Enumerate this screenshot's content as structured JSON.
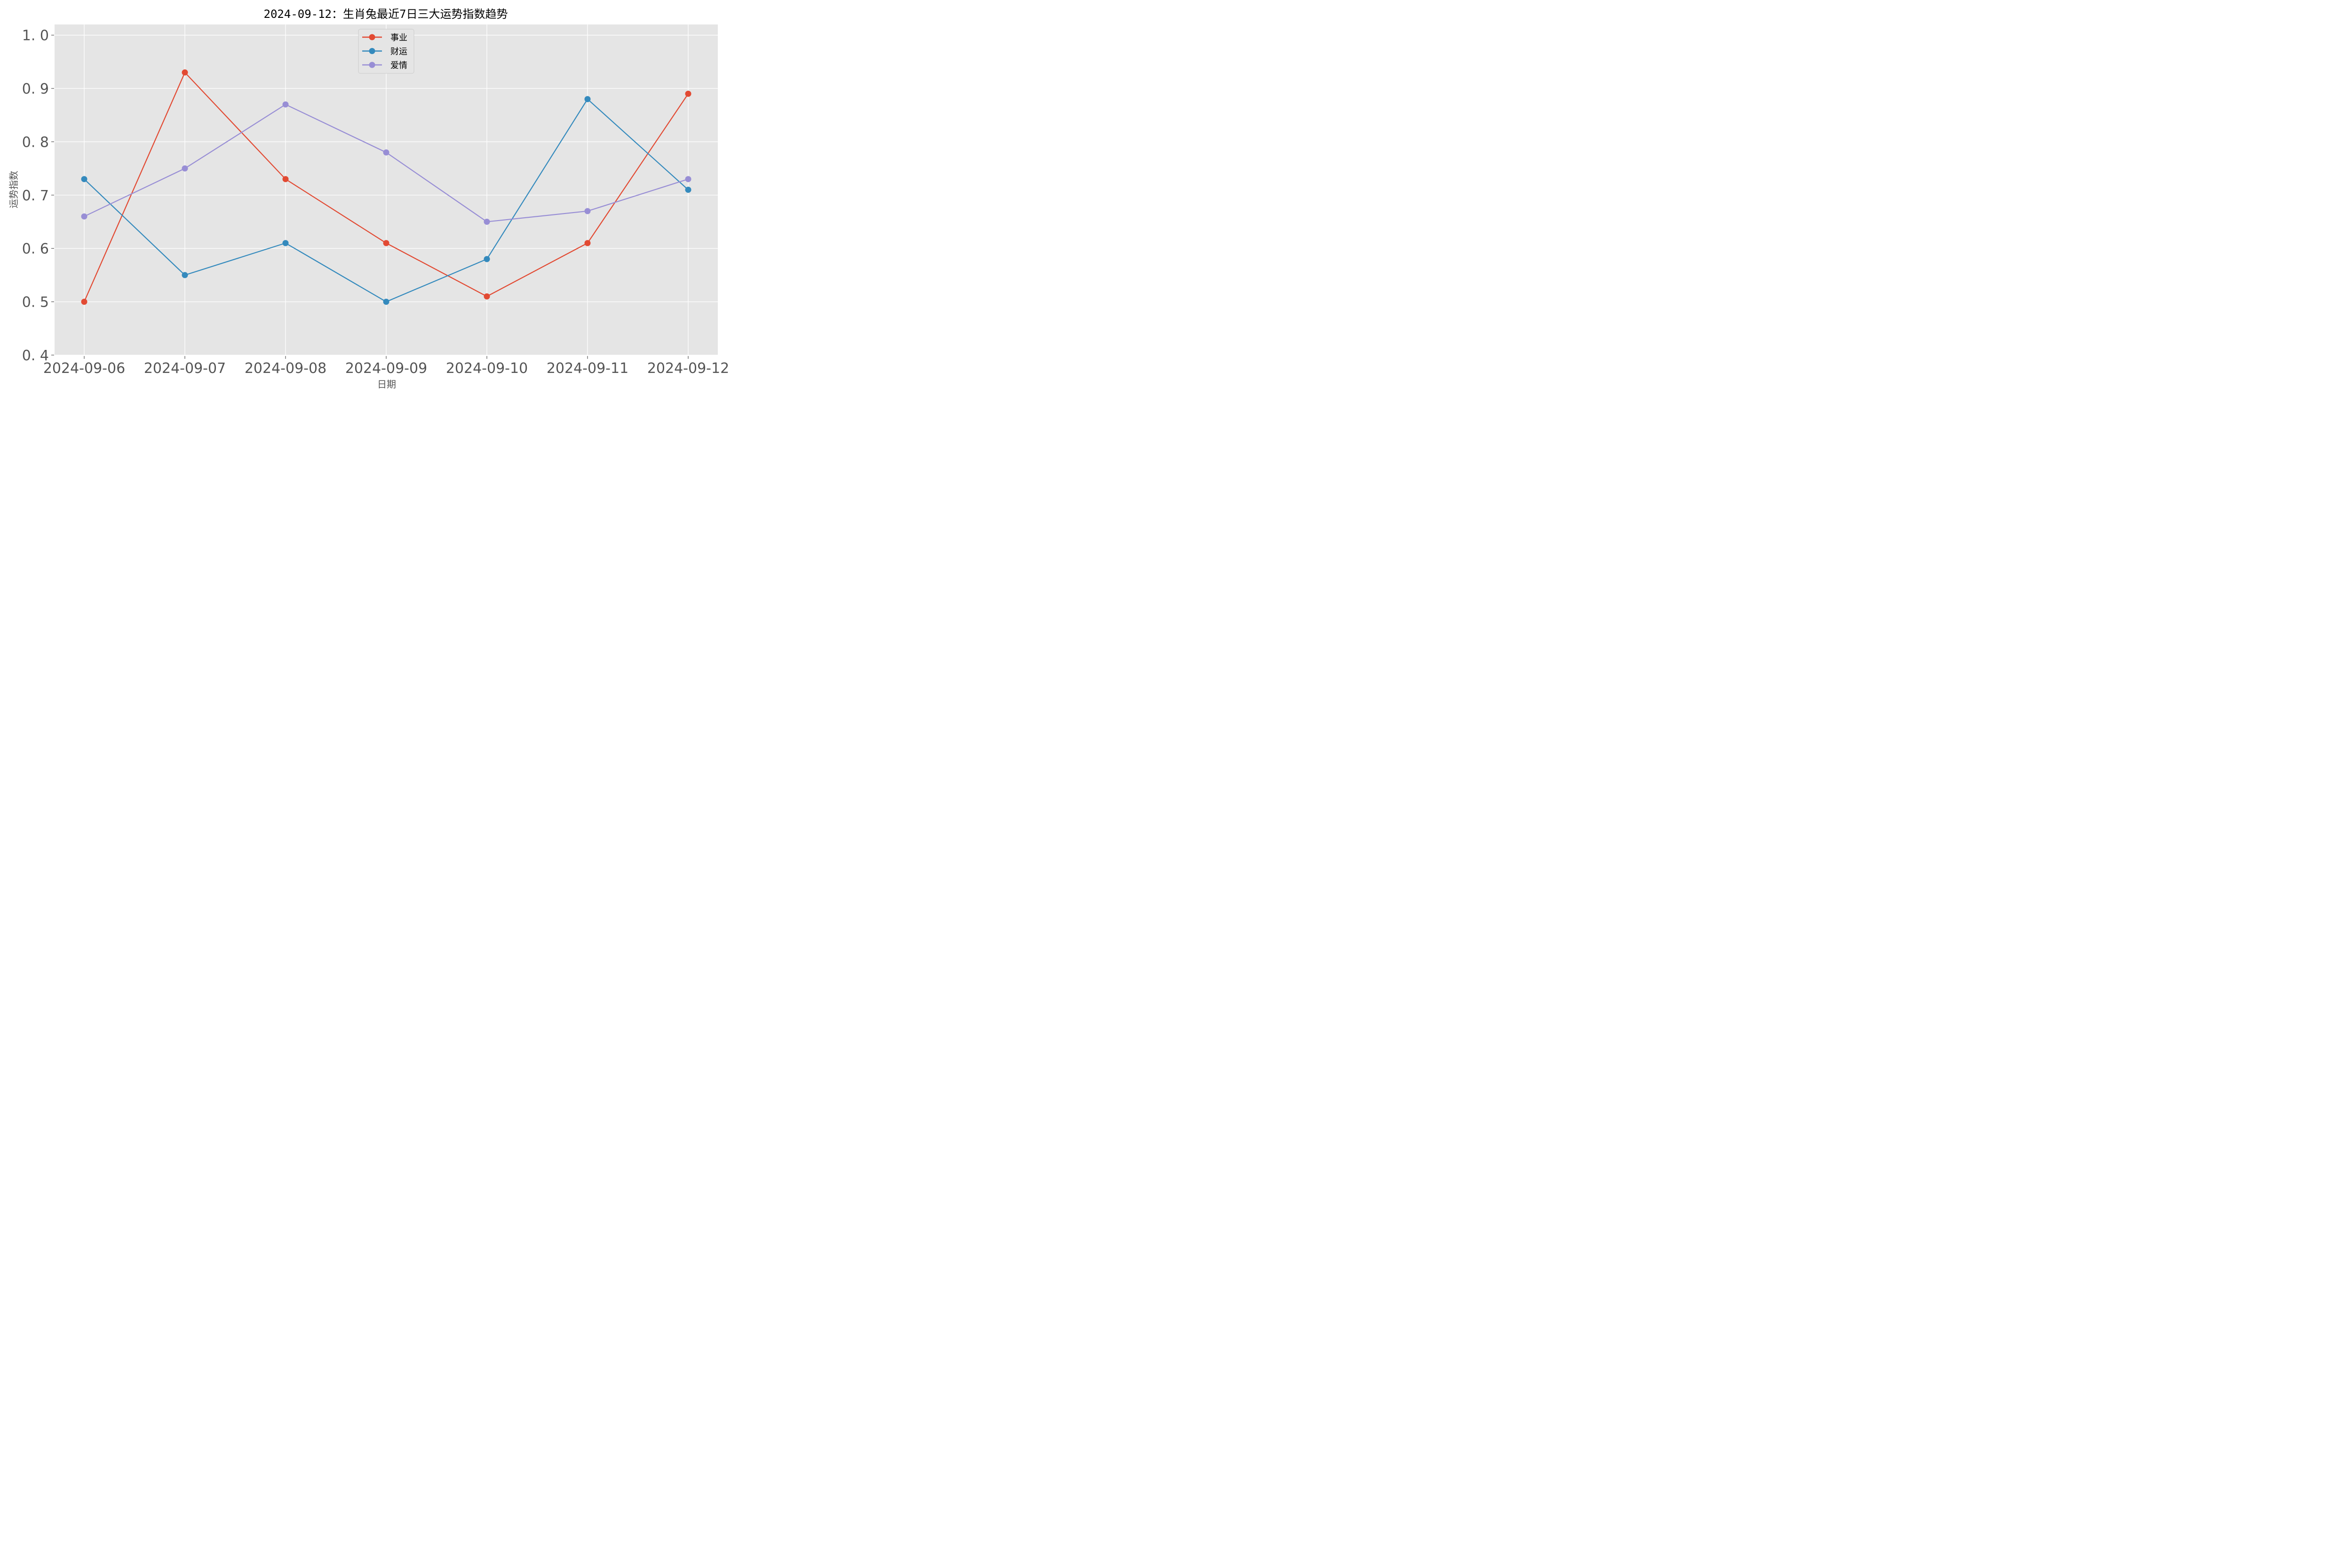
{
  "chart_data": {
    "type": "line",
    "title": "2024-09-12：生肖兔最近7日三大运势指数趋势",
    "xlabel": "日期",
    "ylabel": "运势指数",
    "x": [
      "2024-09-06",
      "2024-09-07",
      "2024-09-08",
      "2024-09-09",
      "2024-09-10",
      "2024-09-11",
      "2024-09-12"
    ],
    "ylim": [
      0.4,
      1.02
    ],
    "yticks": [
      "0.4",
      "0.5",
      "0.6",
      "0.7",
      "0.8",
      "0.9",
      "1.0"
    ],
    "grid": true,
    "legend_position": "upper center",
    "series": [
      {
        "name": "事业",
        "color": "#E24A33",
        "values": [
          0.5,
          0.93,
          0.73,
          0.61,
          0.51,
          0.61,
          0.89
        ]
      },
      {
        "name": "财运",
        "color": "#348ABD",
        "values": [
          0.73,
          0.55,
          0.61,
          0.5,
          0.58,
          0.88,
          0.71
        ]
      },
      {
        "name": "爱情",
        "color": "#988ED5",
        "values": [
          0.66,
          0.75,
          0.87,
          0.78,
          0.65,
          0.67,
          0.73
        ]
      }
    ]
  },
  "style": {
    "plot_background": "#E5E5E5",
    "grid_color": "#FFFFFF",
    "tick_color": "#555555"
  }
}
